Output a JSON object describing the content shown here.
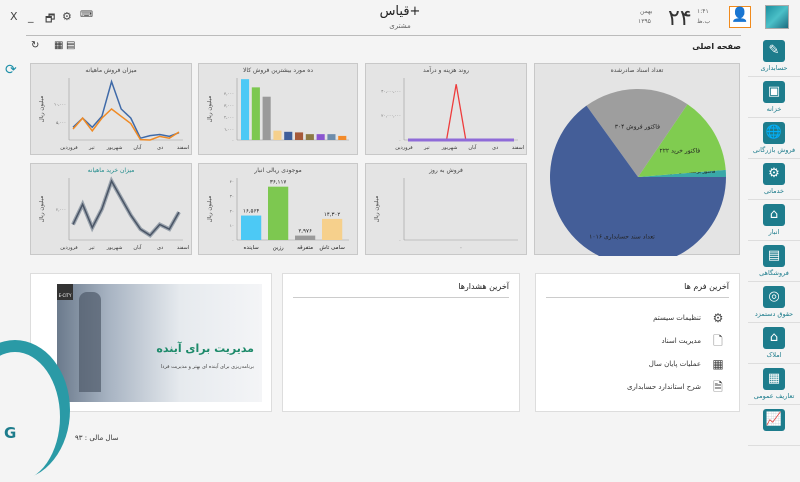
{
  "window": {
    "title": "قیاس+",
    "subtitle": "مشتری",
    "close": "X",
    "minimize": "_",
    "restore": "🗗",
    "settings": "⚙",
    "keyboard": "⌨"
  },
  "date": {
    "day": "۲۴",
    "month": "بهمن",
    "year": "۱۳۹۵",
    "time": "۱:۴۱",
    "ampm": "ب.ظ"
  },
  "page": {
    "title": "صفحه اصلی",
    "refresh": "↻",
    "calc": "▦",
    "calendar": "▤"
  },
  "sidebar": {
    "items": [
      {
        "label": "حسابداری",
        "icon": "accounting-icon",
        "glyph": "✎"
      },
      {
        "label": "خزانه",
        "icon": "safe-icon",
        "glyph": "▣"
      },
      {
        "label": "فروش بازرگانی",
        "icon": "globe-trade-icon",
        "glyph": "🌐"
      },
      {
        "label": "خدماتی",
        "icon": "gear-wrench-icon",
        "glyph": "⚙"
      },
      {
        "label": "انبار",
        "icon": "warehouse-icon",
        "glyph": "⌂"
      },
      {
        "label": "فروشگاهی",
        "icon": "store-icon",
        "glyph": "▤"
      },
      {
        "label": "حقوق دستمزد",
        "icon": "coins-icon",
        "glyph": "◎"
      },
      {
        "label": "املاک",
        "icon": "house-icon",
        "glyph": "⌂"
      },
      {
        "label": "تعاریف عمومی",
        "icon": "table-icon",
        "glyph": "▦"
      },
      {
        "label": "",
        "icon": "report-chart-icon",
        "glyph": "📈"
      }
    ]
  },
  "chart_data": [
    {
      "id": "monthly-sales",
      "type": "line",
      "title": "میزان فروش ماهیانه",
      "ylabel": "میلیون ریال",
      "categories": [
        "فروردین",
        "",
        "",
        "تیر",
        "",
        "شهریور",
        "آبان",
        "",
        "دی",
        "",
        "",
        "اسفند"
      ],
      "xticklabels": [
        "فروردین",
        "تیر",
        "شهریور",
        "آبان",
        "دی",
        "اسفند"
      ],
      "yticks": [
        {
          "v": 5000,
          "label": "۵,۰۰۰"
        },
        {
          "v": 10000,
          "label": "۱۰,۰۰۰"
        }
      ],
      "ylim": [
        0,
        17000
      ],
      "series": [
        {
          "color": "#3f6aa8",
          "values": [
            3500,
            6000,
            3500,
            6500,
            16000,
            8500,
            6000,
            500,
            1200,
            1500,
            1000,
            2000
          ]
        },
        {
          "color": "#f08a24",
          "values": [
            3000,
            6000,
            2500,
            6000,
            8500,
            6500,
            4500,
            100,
            0,
            1000,
            500,
            2200
          ]
        }
      ]
    },
    {
      "id": "top-products",
      "type": "bar",
      "title": "ده مورد بیشترین فروش کالا",
      "ylabel": "میلیون ریال",
      "yticks": [
        {
          "v": 0,
          "label": "۰"
        },
        {
          "v": 1000,
          "label": "۱,۰۰۰"
        },
        {
          "v": 2000,
          "label": "۲,۰۰۰"
        },
        {
          "v": 3000,
          "label": "۳,۰۰۰"
        },
        {
          "v": 4000,
          "label": "۴,۰۰۰"
        }
      ],
      "ylim": [
        0,
        5300
      ],
      "values": [
        5200,
        4500,
        3700,
        800,
        700,
        650,
        500,
        500,
        500,
        350
      ],
      "colors": [
        "#4cc9f5",
        "#7dc850",
        "#9a9a9a",
        "#f6d08c",
        "#3f5f9a",
        "#a65a3a",
        "#8c7a44",
        "#8a55d0",
        "#6d8cab",
        "#f28a2a"
      ]
    },
    {
      "id": "expense-income",
      "type": "line",
      "title": "روند هزینه و درآمد",
      "ylabel": "",
      "xticklabels": [
        "فروردین",
        "تیر",
        "شهریور",
        "آبان",
        "دی",
        "اسفند"
      ],
      "yticks": [
        {
          "v": 0,
          "label": "۰"
        },
        {
          "v": 20000000,
          "label": "۲۰,۰۰۰,۰۰۰"
        },
        {
          "v": 40000000,
          "label": "۴۰,۰۰۰,۰۰۰"
        }
      ],
      "ylim": [
        0,
        50000000
      ],
      "series": [
        {
          "color": "#ee3c3c",
          "values": [
            0,
            0,
            0,
            0,
            0,
            45000000,
            0,
            0,
            0,
            0,
            0,
            0
          ]
        },
        {
          "color": "#8f6bd8",
          "values": [
            0,
            0,
            0,
            0,
            0,
            0,
            0,
            0,
            0,
            0,
            0,
            0
          ]
        }
      ]
    },
    {
      "id": "documents-issued",
      "type": "pie",
      "title": "تعداد اسناد صادرشده",
      "slices": [
        {
          "label": "تعداد سند حسابداری ۱۰۱۶",
          "value": 1016,
          "color": "#445e98"
        },
        {
          "label": "فاکتور فروش ۳۰۴",
          "value": 304,
          "color": "#9e9e9e"
        },
        {
          "label": "فاکتور خرید ۲۲۲",
          "value": 222,
          "color": "#80cc50"
        },
        {
          "label": "فاکتور برگشت از فروش ۲۰",
          "value": 20,
          "color": "#3aa8a8"
        }
      ]
    },
    {
      "id": "monthly-purchase",
      "type": "line",
      "title": "میزان خرید ماهیانه",
      "ylabel": "میلیون ریال",
      "xticklabels": [
        "فروردین",
        "تیر",
        "شهریور",
        "آبان",
        "دی",
        "اسفند"
      ],
      "yticks": [
        {
          "v": 2000,
          "label": "۲,۰۰۰"
        }
      ],
      "ylim": [
        0,
        4000
      ],
      "series": [
        {
          "color": "#4a5566",
          "values": [
            1000,
            2300,
            800,
            2000,
            3800,
            2700,
            1600,
            700,
            300,
            1000,
            700,
            1800
          ]
        }
      ]
    },
    {
      "id": "inventory-value",
      "type": "bar",
      "title": "موجودی ریالی انبار",
      "ylabel": "میلیون ریال",
      "categories": [
        "ساینده",
        "رزین",
        "متفرقه",
        "سامی تاش"
      ],
      "values": [
        16564,
        36117,
        2976,
        14302
      ],
      "datalabels": [
        "۱۶,۵۶۴",
        "۳۶,۱۱۷",
        "۲,۹۷۶",
        "۱۴,۳۰۲"
      ],
      "yticks": [
        {
          "v": 0,
          "label": "۰"
        },
        {
          "v": 10000,
          "label": "۱۰"
        },
        {
          "v": 20000,
          "label": "۲۰"
        },
        {
          "v": 30000,
          "label": "۳۰"
        },
        {
          "v": 40000,
          "label": "۴۰"
        }
      ],
      "ylim": [
        0,
        42000
      ],
      "colors": [
        "#4cc9f5",
        "#7dc850",
        "#9a9a9a",
        "#f6d08c"
      ]
    },
    {
      "id": "daily-sales",
      "type": "line",
      "title": "فروش به روز",
      "ylabel": "میلیون ریال",
      "yticks": [
        {
          "v": 0,
          "label": "۰"
        }
      ],
      "xticklabels": [
        "۰"
      ],
      "series": []
    }
  ],
  "panels": {
    "alerts_title": "آخرین هشدارها",
    "forms_title": "آخرین فرم ها",
    "forms": [
      {
        "label": "تنظیمات سیستم",
        "icon": "gear-icon",
        "glyph": "⚙"
      },
      {
        "label": "مدیریت اسناد",
        "icon": "document-icon",
        "glyph": "🗋"
      },
      {
        "label": "عملیات پایان سال",
        "icon": "calendar-icon",
        "glyph": "▦"
      },
      {
        "label": "شرح استاندارد حسابداری",
        "icon": "file-text-icon",
        "glyph": "🗎"
      }
    ]
  },
  "banner": {
    "headline": "مدیریت برای آینده",
    "tagline": "برنامه‌ریزی برای آینده ای بهتر و مدیریت فردا",
    "logo": "E-CITY"
  },
  "footer": {
    "fiscal_year": "سال مالی : ۹۳"
  }
}
